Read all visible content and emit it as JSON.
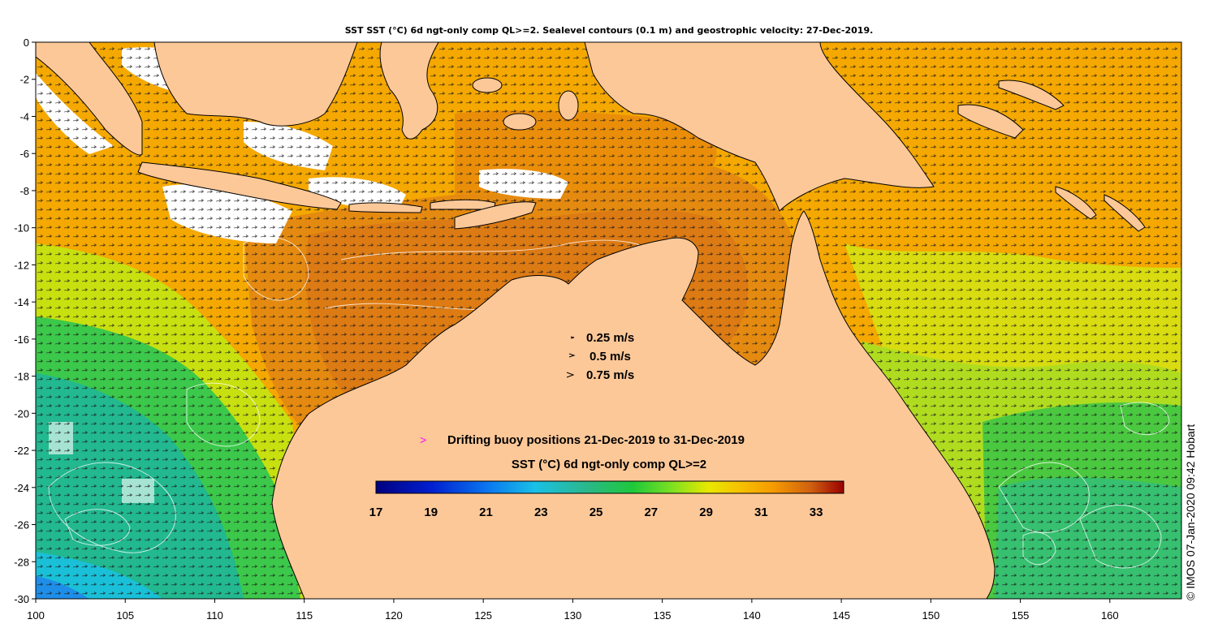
{
  "title": "SST SST (°C) 6d ngt-only comp QL>=2. Sealevel contours (0.1 m) and geostrophic velocity: 27-Dec-2019.",
  "x_axis": {
    "ticks": [
      "100",
      "105",
      "110",
      "115",
      "120",
      "125",
      "130",
      "135",
      "140",
      "145",
      "150",
      "155",
      "160"
    ],
    "range": [
      100,
      164
    ]
  },
  "y_axis": {
    "ticks": [
      "0",
      "-2",
      "-4",
      "-6",
      "-8",
      "-10",
      "-12",
      "-14",
      "-16",
      "-18",
      "-20",
      "-22",
      "-24",
      "-26",
      "-28",
      "-30"
    ],
    "range": [
      -30,
      0
    ]
  },
  "velocity_legend": [
    {
      "label": "0.25 m/s"
    },
    {
      "label": "0.5 m/s"
    },
    {
      "label": "0.75 m/s"
    }
  ],
  "buoy_legend": {
    "symbol": ">",
    "label": "Drifting buoy positions 21-Dec-2019 to 31-Dec-2019",
    "symbol_color": "#ff00ff"
  },
  "colorbar": {
    "title": "SST (°C) 6d ngt-only comp QL>=2",
    "ticks": [
      "17",
      "19",
      "21",
      "23",
      "25",
      "27",
      "29",
      "31",
      "33"
    ],
    "range": [
      17,
      34
    ]
  },
  "credit": "© IMOS 07-Jan-2020 09:42 Hobart",
  "colors": {
    "land": "#fdc898",
    "cold": "#1e5fd8",
    "teal": "#22b8a0",
    "green": "#2ec34a",
    "yellow": "#e8e000",
    "orange": "#f6a400",
    "dark_orange": "#e07a10",
    "cloud": "#ffffff"
  }
}
